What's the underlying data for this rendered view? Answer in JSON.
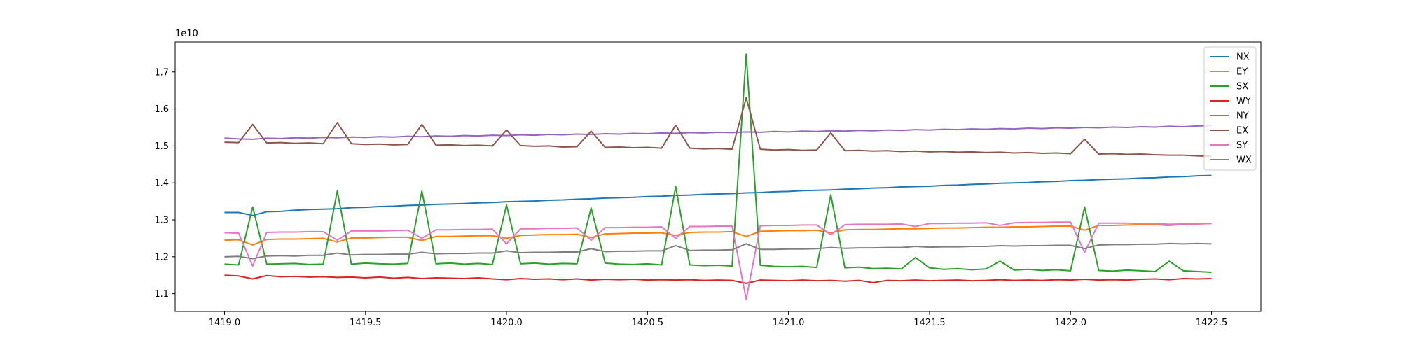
{
  "chart_data": {
    "type": "line",
    "y_offset_text": "1e10",
    "x": [
      1419.0,
      1419.05,
      1419.1,
      1419.15,
      1419.2,
      1419.25,
      1419.3,
      1419.35,
      1419.4,
      1419.45,
      1419.5,
      1419.55,
      1419.6,
      1419.65,
      1419.7,
      1419.75,
      1419.8,
      1419.85,
      1419.9,
      1419.95,
      1420.0,
      1420.05,
      1420.1,
      1420.15,
      1420.2,
      1420.25,
      1420.3,
      1420.35,
      1420.4,
      1420.45,
      1420.5,
      1420.55,
      1420.6,
      1420.65,
      1420.7,
      1420.75,
      1420.8,
      1420.85,
      1420.9,
      1420.95,
      1421.0,
      1421.05,
      1421.1,
      1421.15,
      1421.2,
      1421.25,
      1421.3,
      1421.35,
      1421.4,
      1421.45,
      1421.5,
      1421.55,
      1421.6,
      1421.65,
      1421.7,
      1421.75,
      1421.8,
      1421.85,
      1421.9,
      1421.95,
      1422.0,
      1422.05,
      1422.1,
      1422.15,
      1422.2,
      1422.25,
      1422.3,
      1422.35,
      1422.4,
      1422.45,
      1422.5
    ],
    "series": [
      {
        "name": "NX",
        "color": "#1f77b4",
        "values": [
          1.32,
          1.32,
          1.312,
          1.322,
          1.323,
          1.326,
          1.328,
          1.329,
          1.33,
          1.333,
          1.334,
          1.336,
          1.337,
          1.339,
          1.34,
          1.342,
          1.343,
          1.344,
          1.346,
          1.347,
          1.349,
          1.35,
          1.351,
          1.353,
          1.354,
          1.356,
          1.357,
          1.359,
          1.36,
          1.361,
          1.363,
          1.364,
          1.366,
          1.367,
          1.369,
          1.37,
          1.371,
          1.373,
          1.374,
          1.376,
          1.377,
          1.379,
          1.38,
          1.381,
          1.383,
          1.384,
          1.386,
          1.387,
          1.389,
          1.39,
          1.391,
          1.393,
          1.394,
          1.396,
          1.397,
          1.399,
          1.4,
          1.401,
          1.403,
          1.404,
          1.406,
          1.407,
          1.409,
          1.41,
          1.411,
          1.413,
          1.414,
          1.416,
          1.417,
          1.419,
          1.42
        ]
      },
      {
        "name": "EY",
        "color": "#ff7f0e",
        "values": [
          1.245,
          1.246,
          1.232,
          1.247,
          1.248,
          1.248,
          1.249,
          1.25,
          1.24,
          1.251,
          1.251,
          1.252,
          1.253,
          1.253,
          1.244,
          1.255,
          1.255,
          1.256,
          1.257,
          1.257,
          1.25,
          1.258,
          1.259,
          1.26,
          1.26,
          1.261,
          1.252,
          1.262,
          1.263,
          1.264,
          1.264,
          1.265,
          1.258,
          1.266,
          1.267,
          1.267,
          1.268,
          1.255,
          1.269,
          1.27,
          1.271,
          1.271,
          1.272,
          1.265,
          1.273,
          1.274,
          1.274,
          1.275,
          1.276,
          1.276,
          1.277,
          1.278,
          1.278,
          1.279,
          1.28,
          1.28,
          1.281,
          1.281,
          1.282,
          1.283,
          1.283,
          1.272,
          1.285,
          1.285,
          1.286,
          1.287,
          1.287,
          1.285,
          1.288,
          1.289,
          1.29
        ]
      },
      {
        "name": "SX",
        "color": "#2ca02c",
        "values": [
          1.18,
          1.178,
          1.335,
          1.18,
          1.181,
          1.182,
          1.179,
          1.18,
          1.378,
          1.18,
          1.183,
          1.181,
          1.18,
          1.182,
          1.378,
          1.181,
          1.183,
          1.18,
          1.182,
          1.179,
          1.34,
          1.181,
          1.183,
          1.18,
          1.182,
          1.181,
          1.332,
          1.183,
          1.18,
          1.179,
          1.181,
          1.178,
          1.39,
          1.178,
          1.176,
          1.177,
          1.175,
          1.748,
          1.177,
          1.174,
          1.173,
          1.174,
          1.171,
          1.368,
          1.17,
          1.172,
          1.168,
          1.169,
          1.167,
          1.198,
          1.17,
          1.166,
          1.168,
          1.165,
          1.167,
          1.188,
          1.164,
          1.166,
          1.163,
          1.165,
          1.162,
          1.335,
          1.163,
          1.161,
          1.164,
          1.162,
          1.16,
          1.188,
          1.162,
          1.16,
          1.158
        ]
      },
      {
        "name": "WY",
        "color": "#d62728",
        "values": [
          1.15,
          1.148,
          1.14,
          1.149,
          1.146,
          1.147,
          1.145,
          1.146,
          1.144,
          1.145,
          1.143,
          1.145,
          1.142,
          1.144,
          1.141,
          1.143,
          1.142,
          1.141,
          1.143,
          1.14,
          1.138,
          1.141,
          1.139,
          1.14,
          1.138,
          1.14,
          1.137,
          1.139,
          1.138,
          1.139,
          1.137,
          1.138,
          1.137,
          1.138,
          1.136,
          1.137,
          1.136,
          1.128,
          1.137,
          1.136,
          1.135,
          1.137,
          1.135,
          1.136,
          1.134,
          1.136,
          1.13,
          1.136,
          1.135,
          1.137,
          1.135,
          1.136,
          1.137,
          1.135,
          1.136,
          1.138,
          1.136,
          1.137,
          1.136,
          1.138,
          1.137,
          1.139,
          1.137,
          1.138,
          1.137,
          1.139,
          1.14,
          1.138,
          1.141,
          1.14,
          1.141
        ]
      },
      {
        "name": "NY",
        "color": "#9467bd",
        "values": [
          1.521,
          1.519,
          1.518,
          1.521,
          1.52,
          1.522,
          1.521,
          1.523,
          1.522,
          1.524,
          1.523,
          1.525,
          1.524,
          1.526,
          1.525,
          1.527,
          1.526,
          1.528,
          1.527,
          1.529,
          1.528,
          1.53,
          1.529,
          1.531,
          1.53,
          1.532,
          1.531,
          1.533,
          1.532,
          1.534,
          1.533,
          1.535,
          1.534,
          1.536,
          1.535,
          1.537,
          1.536,
          1.538,
          1.537,
          1.539,
          1.538,
          1.54,
          1.539,
          1.541,
          1.54,
          1.542,
          1.541,
          1.543,
          1.542,
          1.544,
          1.543,
          1.545,
          1.544,
          1.546,
          1.545,
          1.547,
          1.546,
          1.548,
          1.547,
          1.549,
          1.548,
          1.55,
          1.549,
          1.551,
          1.55,
          1.552,
          1.551,
          1.553,
          1.552,
          1.554,
          1.555
        ]
      },
      {
        "name": "EX",
        "color": "#8c564b",
        "values": [
          1.51,
          1.509,
          1.558,
          1.508,
          1.509,
          1.507,
          1.508,
          1.506,
          1.563,
          1.506,
          1.504,
          1.505,
          1.503,
          1.504,
          1.558,
          1.502,
          1.503,
          1.501,
          1.502,
          1.5,
          1.543,
          1.501,
          1.499,
          1.5,
          1.497,
          1.498,
          1.54,
          1.496,
          1.497,
          1.495,
          1.496,
          1.494,
          1.556,
          1.494,
          1.492,
          1.493,
          1.491,
          1.63,
          1.491,
          1.489,
          1.49,
          1.488,
          1.489,
          1.535,
          1.487,
          1.488,
          1.486,
          1.487,
          1.485,
          1.486,
          1.484,
          1.485,
          1.483,
          1.484,
          1.482,
          1.483,
          1.481,
          1.482,
          1.48,
          1.481,
          1.479,
          1.518,
          1.478,
          1.479,
          1.477,
          1.478,
          1.476,
          1.475,
          1.475,
          1.473,
          1.472
        ]
      },
      {
        "name": "SY",
        "color": "#e377c2",
        "values": [
          1.265,
          1.264,
          1.175,
          1.266,
          1.267,
          1.267,
          1.268,
          1.268,
          1.245,
          1.27,
          1.27,
          1.27,
          1.271,
          1.272,
          1.25,
          1.273,
          1.273,
          1.274,
          1.274,
          1.275,
          1.235,
          1.276,
          1.276,
          1.277,
          1.277,
          1.278,
          1.245,
          1.279,
          1.279,
          1.28,
          1.28,
          1.281,
          1.25,
          1.282,
          1.282,
          1.283,
          1.283,
          1.085,
          1.284,
          1.285,
          1.285,
          1.286,
          1.286,
          1.26,
          1.287,
          1.288,
          1.288,
          1.288,
          1.289,
          1.282,
          1.29,
          1.29,
          1.291,
          1.291,
          1.292,
          1.285,
          1.292,
          1.293,
          1.293,
          1.294,
          1.294,
          1.212,
          1.291,
          1.291,
          1.291,
          1.29,
          1.29,
          1.288,
          1.289,
          1.289,
          1.29
        ]
      },
      {
        "name": "WX",
        "color": "#7f7f7f",
        "values": [
          1.2,
          1.201,
          1.195,
          1.202,
          1.203,
          1.202,
          1.204,
          1.204,
          1.21,
          1.205,
          1.206,
          1.206,
          1.207,
          1.207,
          1.212,
          1.208,
          1.209,
          1.209,
          1.21,
          1.21,
          1.216,
          1.211,
          1.212,
          1.212,
          1.213,
          1.213,
          1.222,
          1.214,
          1.215,
          1.215,
          1.216,
          1.216,
          1.23,
          1.217,
          1.218,
          1.218,
          1.219,
          1.235,
          1.22,
          1.22,
          1.221,
          1.221,
          1.222,
          1.225,
          1.223,
          1.224,
          1.224,
          1.225,
          1.225,
          1.228,
          1.226,
          1.227,
          1.227,
          1.228,
          1.228,
          1.23,
          1.229,
          1.23,
          1.23,
          1.231,
          1.231,
          1.222,
          1.232,
          1.233,
          1.233,
          1.234,
          1.234,
          1.236,
          1.235,
          1.236,
          1.235
        ]
      }
    ],
    "xlim": [
      1418.825,
      1422.675
    ],
    "ylim": [
      1.052,
      1.781
    ],
    "xticks": [
      {
        "value": 1419.0,
        "label": "1419.0"
      },
      {
        "value": 1419.5,
        "label": "1419.5"
      },
      {
        "value": 1420.0,
        "label": "1420.0"
      },
      {
        "value": 1420.5,
        "label": "1420.5"
      },
      {
        "value": 1421.0,
        "label": "1421.0"
      },
      {
        "value": 1421.5,
        "label": "1421.5"
      },
      {
        "value": 1422.0,
        "label": "1422.0"
      },
      {
        "value": 1422.5,
        "label": "1422.5"
      }
    ],
    "yticks": [
      1.1,
      1.2,
      1.3,
      1.4,
      1.5,
      1.6,
      1.7
    ],
    "grid": false,
    "legend": "upper right"
  }
}
